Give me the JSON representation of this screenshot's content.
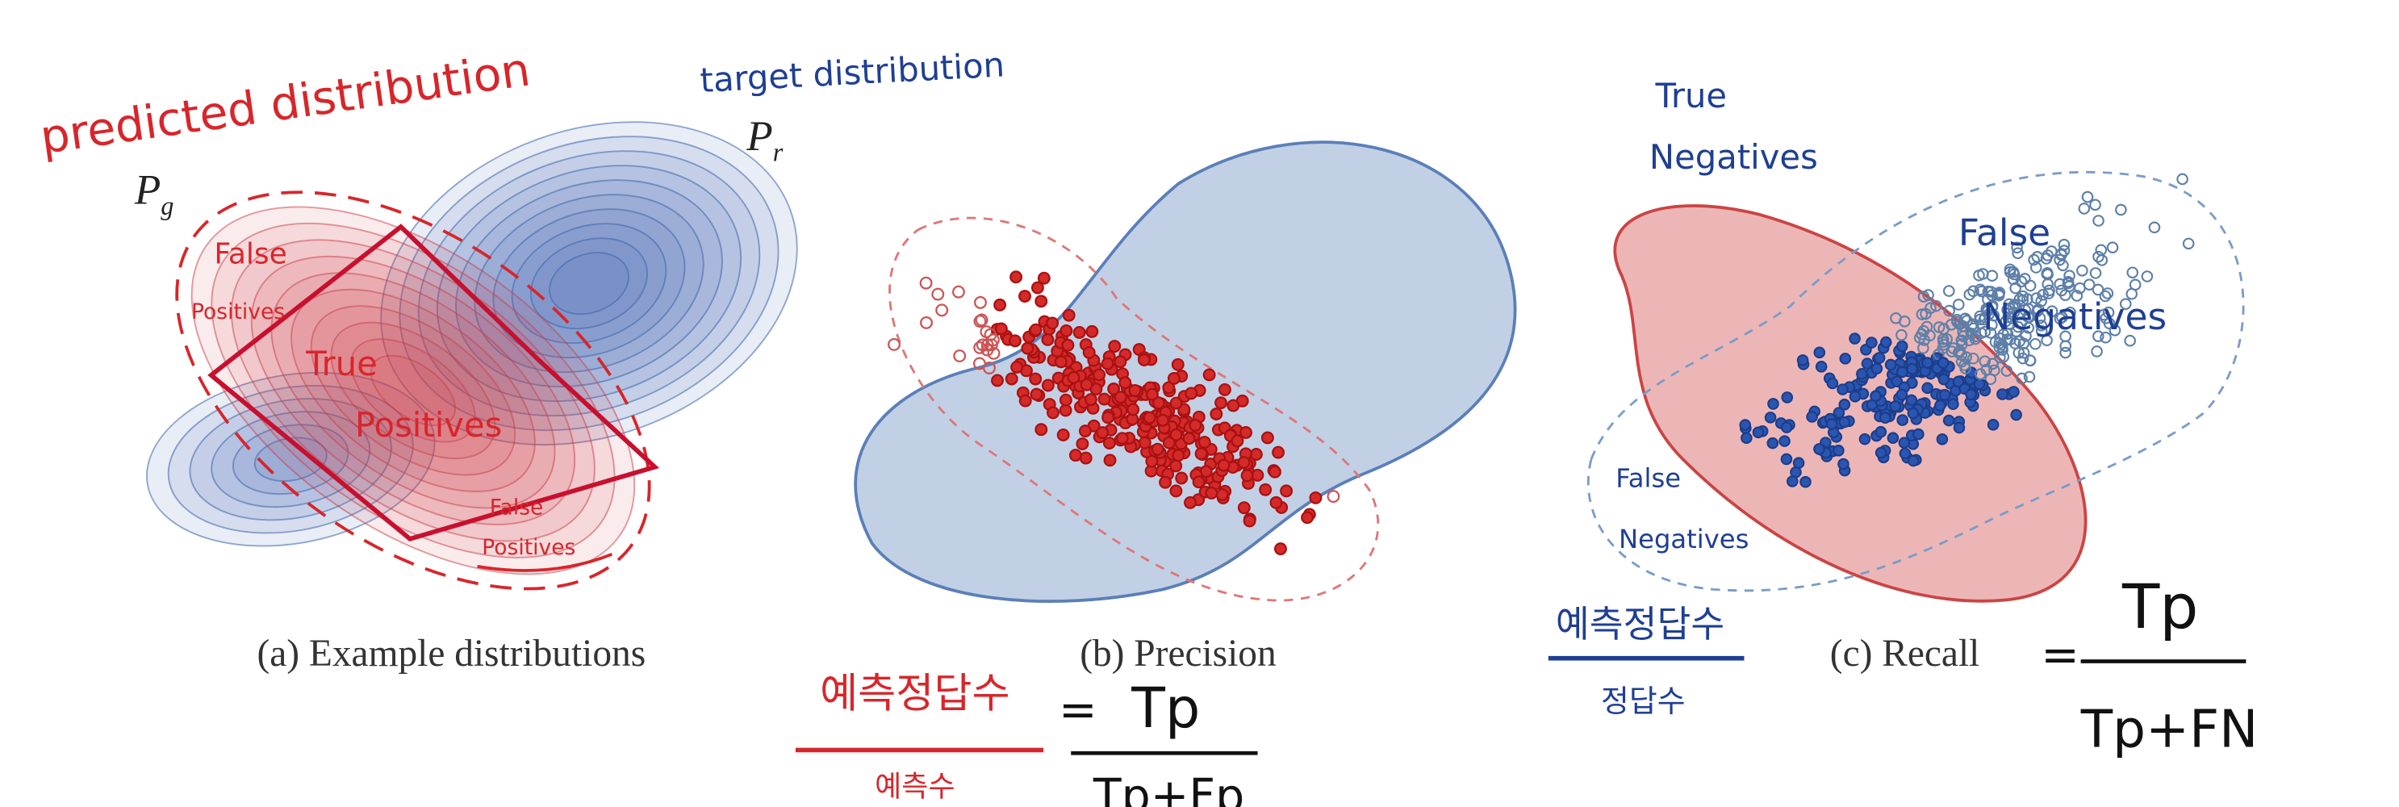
{
  "panels": [
    {
      "caption": "(a) Example distributions",
      "title_predicted": "predicted distribution",
      "title_target": "target distribution",
      "pg": {
        "symbol": "P",
        "sub": "g"
      },
      "pr": {
        "symbol": "P",
        "sub": "r"
      },
      "labels": [
        [
          "False",
          "Positives"
        ],
        [
          "True",
          "Positives"
        ],
        [
          "False",
          "Positives"
        ]
      ]
    },
    {
      "caption": "(b) Precision"
    },
    {
      "caption": "(c) Recall",
      "labels": [
        [
          "True",
          "Negatives"
        ],
        [
          "False",
          "Negatives"
        ],
        [
          "False",
          "Negatives"
        ]
      ]
    }
  ],
  "formulas": [
    {
      "numerator_text": "예측정답수",
      "denominator_text": "예측수",
      "operator": "=",
      "numerator": "Tp",
      "denominator": "Tp+Fp"
    },
    {
      "numerator_text": "예측정답수",
      "denominator_text": "정답수",
      "operator": "=",
      "numerator": "Tp",
      "denominator": "Tp+FN"
    }
  ]
}
